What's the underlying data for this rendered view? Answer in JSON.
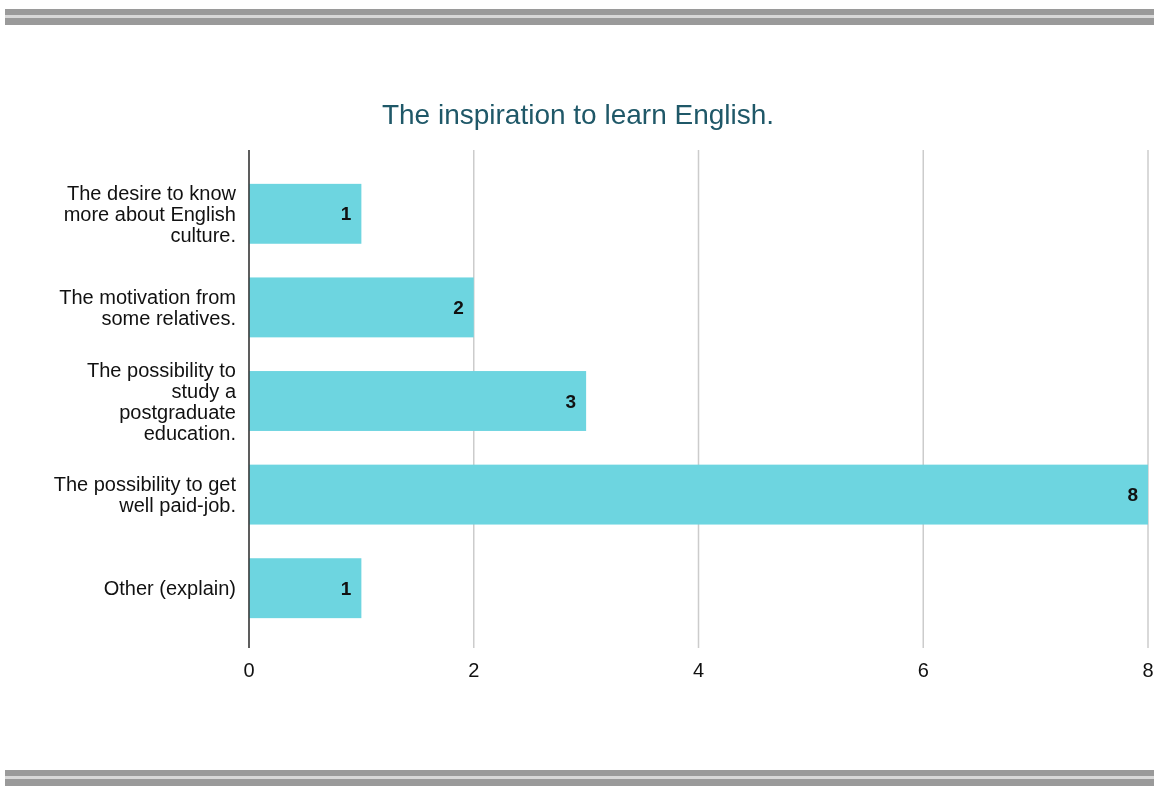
{
  "chart_data": {
    "type": "bar",
    "orientation": "horizontal",
    "title": "The inspiration to learn English.",
    "categories": [
      "The desire to know\nmore about English\nculture.",
      "The motivation from\nsome relatives.",
      "The possibility to\nstudy a\npostgraduate\neducation.",
      "The possibility to get\nwell paid-job.",
      "Other (explain)"
    ],
    "values": [
      1,
      2,
      3,
      8,
      1
    ],
    "color": "#6dd5e0",
    "xlim": [
      0,
      8
    ],
    "xticks": [
      0,
      2,
      4,
      6,
      8
    ],
    "grid": "x",
    "data_labels": true
  }
}
